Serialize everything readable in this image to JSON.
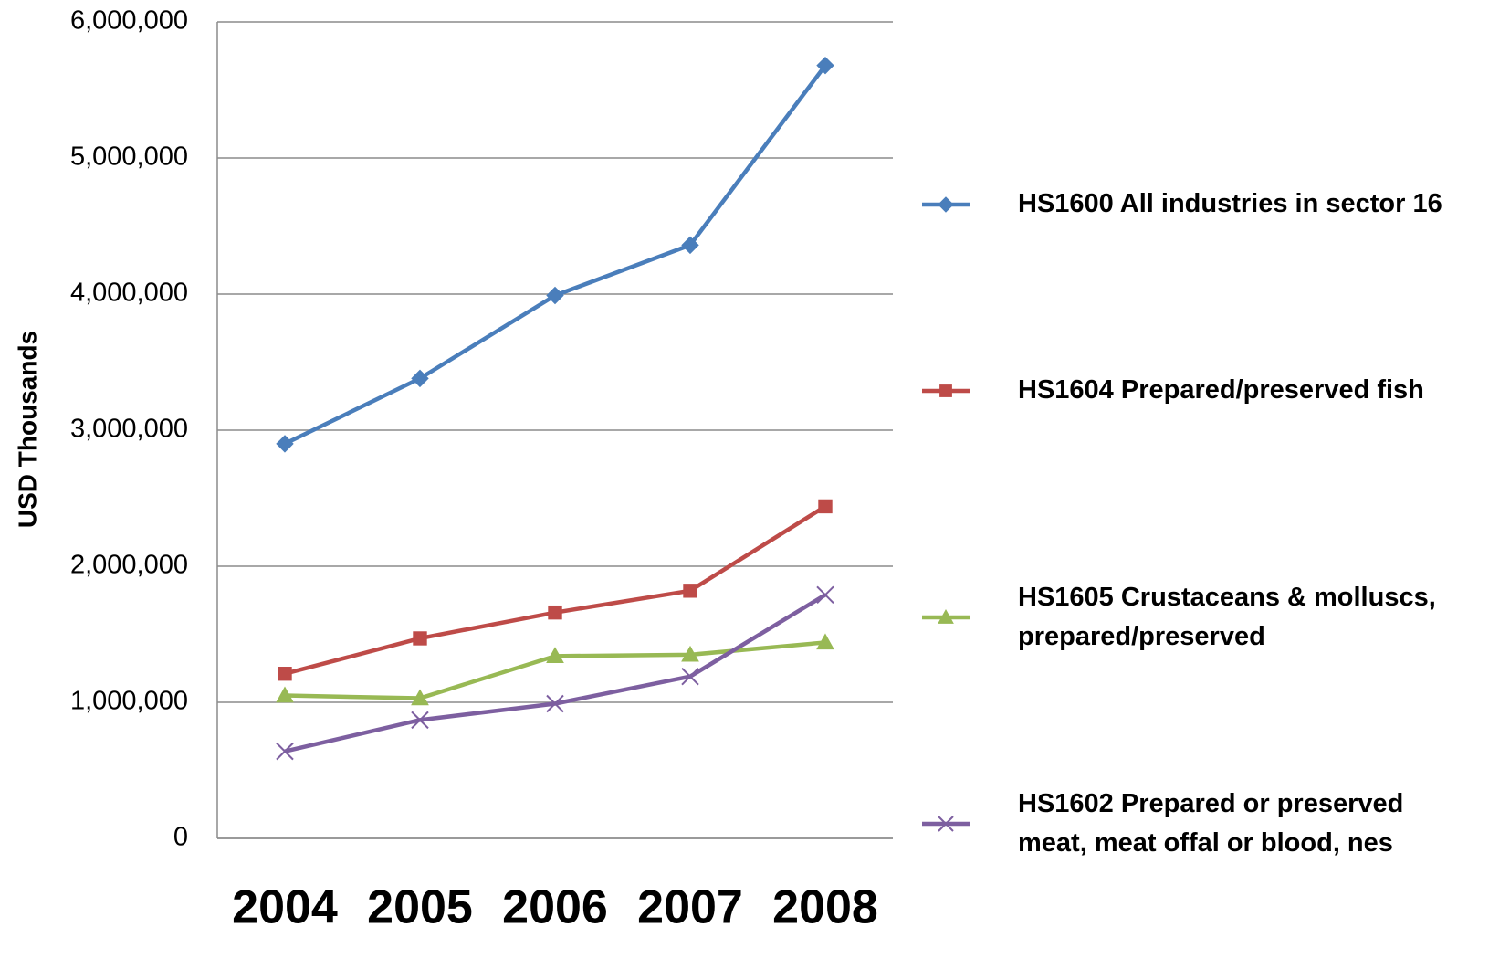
{
  "chart_data": {
    "type": "line",
    "y_label": "USD Thousands",
    "categories": [
      "2004",
      "2005",
      "2006",
      "2007",
      "2008"
    ],
    "series": [
      {
        "name": "HS1600 All industries in sector 16",
        "color": "#4a7ebb",
        "marker": "diamond",
        "values": [
          2900000,
          3380000,
          3990000,
          4360000,
          5680000
        ]
      },
      {
        "name": "HS1604 Prepared/preserved fish",
        "color": "#be4b48",
        "marker": "square",
        "values": [
          1210000,
          1470000,
          1660000,
          1820000,
          2440000
        ]
      },
      {
        "name": "HS1605 Crustaceans & molluscs, prepared/preserved",
        "color": "#98b954",
        "marker": "triangle",
        "values": [
          1050000,
          1030000,
          1340000,
          1350000,
          1440000
        ]
      },
      {
        "name": "HS1602 Prepared or preserved meat, meat offal or blood, nes",
        "color": "#7d5fa0",
        "marker": "x",
        "values": [
          640000,
          870000,
          990000,
          1190000,
          1790000
        ]
      }
    ],
    "ylim": [
      0,
      6000000
    ],
    "yticks": [
      0,
      {
        "value": 1000000,
        "label": "1,000,000"
      },
      {
        "value": 2000000,
        "label": "2,000,000"
      },
      {
        "value": 3000000,
        "label": "3,000,000"
      },
      {
        "value": 4000000,
        "label": "4,000,000"
      },
      {
        "value": 5000000,
        "label": "5,000,000"
      },
      {
        "value": 6000000,
        "label": "6,000,000"
      }
    ],
    "grid": true
  }
}
